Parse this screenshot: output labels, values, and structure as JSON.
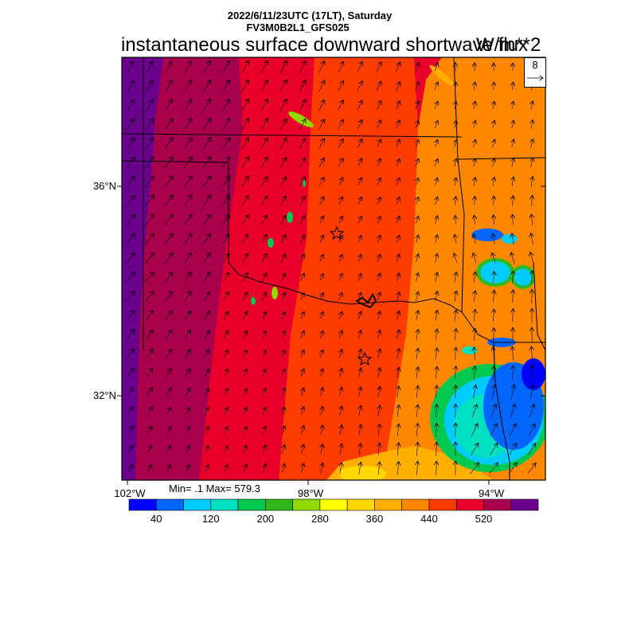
{
  "header": {
    "line1": "2022/6/11/23UTC (17LT), Saturday",
    "line2": "FV3M0B2L1_GFS025",
    "title": "instantaneous surface downward shortwave flux",
    "units": "W/m**2"
  },
  "map": {
    "lat_labels": [
      "36°N",
      "32°N"
    ],
    "lon_labels": [
      "102°W",
      "98°W",
      "94°W"
    ],
    "minmax": "Min= .1 Max= 579.3",
    "reference_vector": "8"
  },
  "colorbar": {
    "colors": [
      "#0000ff",
      "#0066ff",
      "#00ccff",
      "#00e0c0",
      "#00c850",
      "#30b818",
      "#90d800",
      "#ffff00",
      "#ffd800",
      "#ffb000",
      "#ff8800",
      "#ff3c00",
      "#e8002a",
      "#a8004c",
      "#6a008c"
    ],
    "labels": [
      "40",
      "120",
      "200",
      "280",
      "360",
      "440",
      "520"
    ]
  },
  "colors": {
    "field_purple": "#6a008c",
    "field_magenta": "#a8004c",
    "field_red": "#e8002a",
    "field_redorange": "#ff3c00",
    "field_orange": "#ff8800",
    "field_amber": "#ffb000",
    "field_cyan": "#00ccff",
    "field_blue": "#0066ff",
    "field_green": "#00c850"
  }
}
